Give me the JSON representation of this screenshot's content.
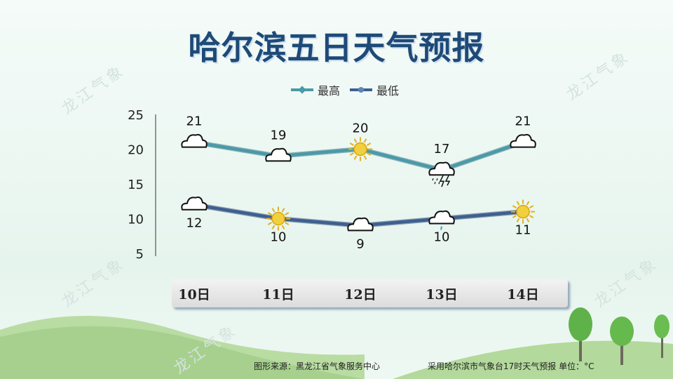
{
  "title": "哈尔滨五日天气预报",
  "watermark": "龙江气象",
  "footer": {
    "source": "图形来源：黑龙江省气象服务中心",
    "note": "采用哈尔滨市气象台17时天气预报 单位：°C"
  },
  "colors": {
    "high": "#4a9aa8",
    "low": "#3f5f90",
    "title": "#1e4a78"
  },
  "chart_data": {
    "type": "line",
    "categories": [
      "10日",
      "11日",
      "12日",
      "13日",
      "14日"
    ],
    "series": [
      {
        "name": "最高",
        "values": [
          21,
          19,
          20,
          17,
          21
        ],
        "icons": [
          "cloud-icon",
          "cloud-icon",
          "sun-icon",
          "thunderstorm-icon",
          "cloud-icon"
        ]
      },
      {
        "name": "最低",
        "values": [
          12,
          10,
          9,
          10,
          11
        ],
        "icons": [
          "cloud-icon",
          "sun-icon",
          "cloud-icon",
          "light-rain-icon",
          "sun-icon"
        ]
      }
    ],
    "yticks": [
      25,
      20,
      15,
      10,
      5
    ],
    "ylim": [
      5,
      25
    ],
    "legend": "top-center",
    "grid": false
  }
}
